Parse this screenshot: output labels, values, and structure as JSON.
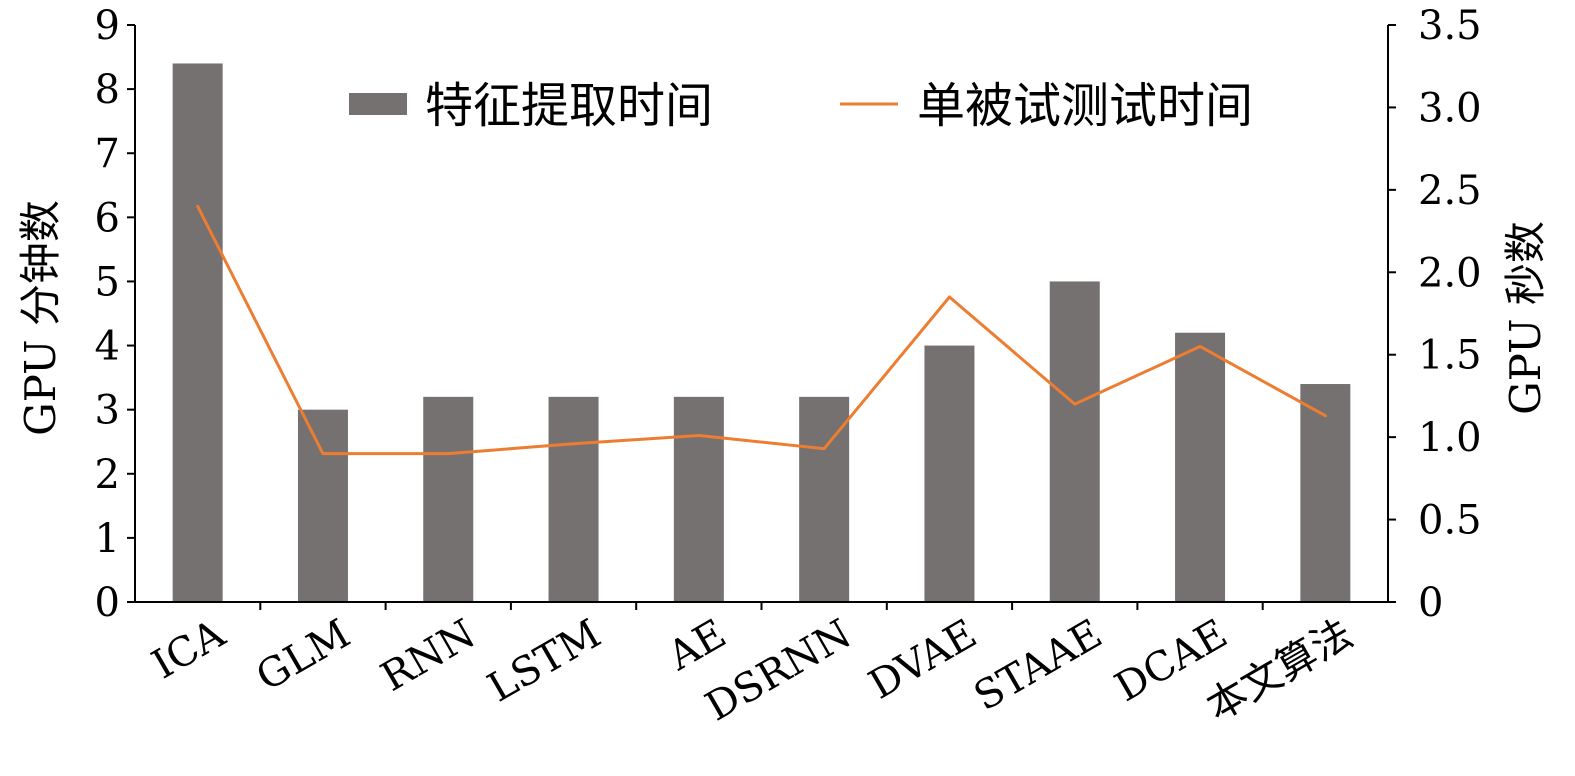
{
  "chart_data": {
    "type": "bar",
    "categories": [
      "ICA",
      "GLM",
      "RNN",
      "LSTM",
      "AE",
      "DSRNN",
      "DVAE",
      "STAAE",
      "DCAE",
      "本文算法"
    ],
    "series": [
      {
        "name": "特征提取时间",
        "type": "bar",
        "axis": "left",
        "color": "#767171",
        "values": [
          8.4,
          3.0,
          3.2,
          3.2,
          3.2,
          3.2,
          4.0,
          5.0,
          4.2,
          3.4
        ]
      },
      {
        "name": "单被试测试时间",
        "type": "line",
        "axis": "right",
        "color": "#ED7D31",
        "values": [
          2.4,
          0.9,
          0.9,
          0.96,
          1.01,
          0.93,
          1.85,
          1.2,
          1.55,
          1.13
        ]
      }
    ],
    "ylabel": "GPU 分钟数",
    "y2label": "GPU 秒数",
    "ylim": [
      0,
      9
    ],
    "y2lim": [
      0,
      3.5
    ],
    "yticks": [
      "0",
      "1",
      "2",
      "3",
      "4",
      "5",
      "6",
      "7",
      "8",
      "9"
    ],
    "y2ticks": [
      "0",
      "0.5",
      "1.0",
      "1.5",
      "2.0",
      "2.5",
      "3.0",
      "3.5"
    ],
    "legend_position": "top",
    "grid": false
  }
}
